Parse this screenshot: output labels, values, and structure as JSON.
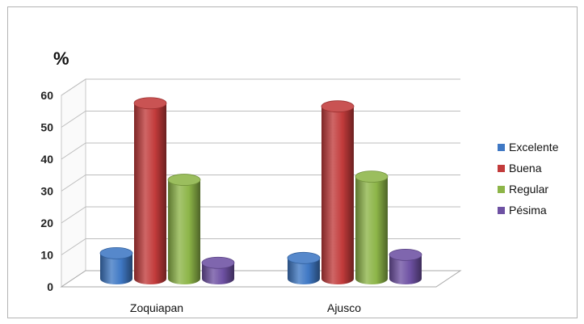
{
  "chart_data": {
    "type": "bar",
    "title": "",
    "ylabel": "%",
    "xlabel": "",
    "categories": [
      "Zoquiapan",
      "Ajusco"
    ],
    "series": [
      {
        "name": "Excelente",
        "values": [
          8,
          6.5
        ],
        "color": "#3f78c4"
      },
      {
        "name": "Buena",
        "values": [
          55,
          54
        ],
        "color": "#c23b3b"
      },
      {
        "name": "Regular",
        "values": [
          31,
          32
        ],
        "color": "#8db548"
      },
      {
        "name": "Pésima",
        "values": [
          5,
          7.5
        ],
        "color": "#6e51a3"
      }
    ],
    "ylim": [
      0,
      60
    ],
    "yticks": [
      0,
      10,
      20,
      30,
      40,
      50,
      60
    ],
    "grid": true,
    "bar_shape": "3d-cylinder",
    "legend_position": "right"
  }
}
